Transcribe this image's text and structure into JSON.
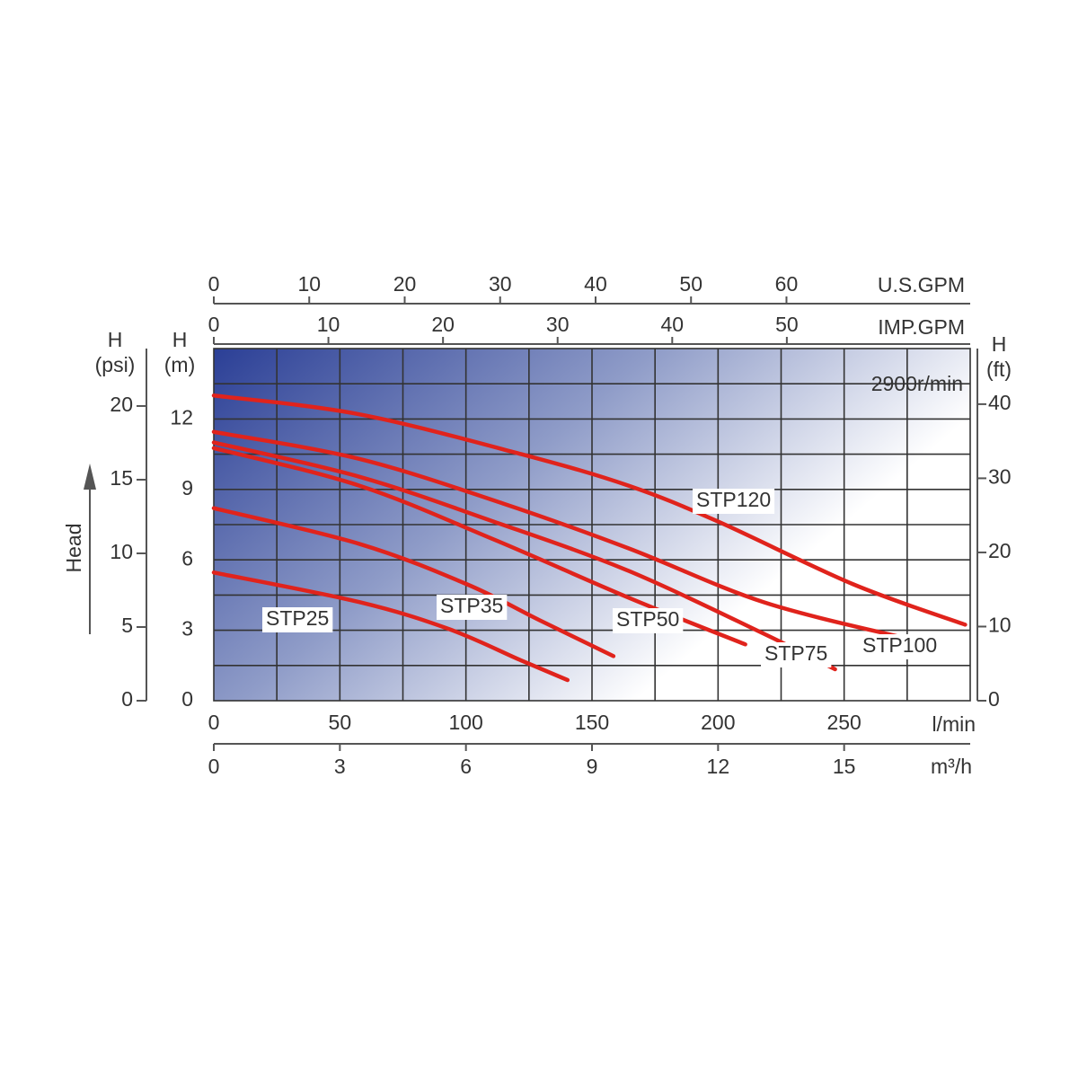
{
  "chart_data": {
    "type": "line",
    "annotation": "2900r/min",
    "xlabel": "l/min",
    "ylabel": [
      "H",
      "(m)"
    ],
    "side_label": "Head",
    "xlim": [
      0,
      300
    ],
    "xticks": [
      0,
      50,
      100,
      150,
      200,
      250
    ],
    "ylim": [
      0,
      15
    ],
    "yticks": [
      0,
      3,
      6,
      9,
      12
    ],
    "xgrid": [
      25,
      50,
      75,
      100,
      125,
      150,
      175,
      200,
      225,
      250,
      275
    ],
    "ygrid": [
      1.5,
      3,
      4.5,
      6,
      7.5,
      9,
      10.5,
      12,
      13.5
    ],
    "grid": true,
    "extra_axes": [
      {
        "label": [
          "U.S.GPM"
        ],
        "position": "top",
        "lim": [
          0,
          79.25
        ],
        "ticks": [
          0,
          10,
          20,
          30,
          40,
          50,
          60
        ]
      },
      {
        "label": [
          "IMP.GPM"
        ],
        "position": "top-inner",
        "lim": [
          0,
          66
        ],
        "ticks": [
          0,
          10,
          20,
          30,
          40,
          50
        ]
      },
      {
        "label": [
          "m³/h"
        ],
        "position": "bottom",
        "lim": [
          0,
          18
        ],
        "ticks": [
          0,
          3,
          6,
          9,
          12,
          15
        ]
      },
      {
        "label": [
          "H",
          "(psi)"
        ],
        "position": "left",
        "lim": [
          0,
          23.9
        ],
        "ticks": [
          0,
          5,
          10,
          15,
          20
        ]
      },
      {
        "label": [
          "H",
          "(ft)"
        ],
        "position": "right",
        "lim": [
          0,
          47.5
        ],
        "ticks": [
          0,
          10,
          20,
          30,
          40
        ]
      }
    ],
    "series": [
      {
        "name": "STP25",
        "color": "#e0231c",
        "x": [
          0,
          57.7,
          93.3,
          121.8,
          140.3
        ],
        "values": [
          5.46,
          4.2,
          3.05,
          1.72,
          0.88
        ]
      },
      {
        "name": "STP35",
        "color": "#e0231c",
        "x": [
          0,
          57.7,
          100.4,
          129,
          158.5
        ],
        "values": [
          8.2,
          6.68,
          4.96,
          3.44,
          1.9
        ]
      },
      {
        "name": "STP50",
        "color": "#e0231c",
        "x": [
          0,
          57.7,
          111,
          164.5,
          210.8
        ],
        "values": [
          10.76,
          9.16,
          6.87,
          4.39,
          2.4
        ]
      },
      {
        "name": "STP75",
        "color": "#e0231c",
        "x": [
          0,
          57.7,
          111,
          164.5,
          218,
          246.4
        ],
        "values": [
          11.0,
          9.54,
          7.63,
          5.53,
          2.86,
          1.34
        ]
      },
      {
        "name": "STP100",
        "color": "#e0231c",
        "x": [
          0,
          57.7,
          114.7,
          164.5,
          218,
          274
        ],
        "values": [
          11.45,
          10.3,
          8.4,
          6.49,
          4.2,
          2.67
        ]
      },
      {
        "name": "STP120",
        "color": "#e0231c",
        "x": [
          0,
          57.7,
          122,
          164.5,
          200,
          253.6,
          298
        ],
        "values": [
          13.0,
          12.2,
          10.5,
          9.16,
          7.63,
          4.96,
          3.24
        ]
      }
    ]
  }
}
